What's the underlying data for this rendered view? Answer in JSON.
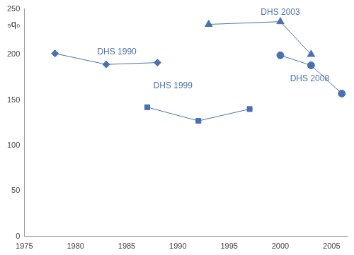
{
  "chart_data": {
    "type": "line",
    "ylabel": "₅q₀",
    "xlim": [
      1975,
      2006.5
    ],
    "xticks": [
      1975,
      1980,
      1985,
      1990,
      1995,
      2000,
      2005
    ],
    "ylim": [
      0,
      250
    ],
    "yticks": [
      0,
      50,
      100,
      150,
      200,
      250
    ],
    "grid": false,
    "series": [
      {
        "name": "DHS 1990",
        "color": "#4a72b0",
        "marker": "diamond",
        "line_style": "solid",
        "x": [
          1978,
          1983,
          1988
        ],
        "values": [
          201,
          189,
          191
        ]
      },
      {
        "name": "DHS 1999",
        "color": "#4a72b0",
        "marker": "square",
        "line_style": "solid",
        "x": [
          1987,
          1992,
          1997
        ],
        "values": [
          142,
          127,
          140
        ]
      },
      {
        "name": "DHS 2003",
        "color": "#4a72b0",
        "marker": "triangle",
        "line_style": "solid",
        "x": [
          1993,
          2000,
          2003
        ],
        "values": [
          233,
          236,
          200
        ]
      },
      {
        "name": "DHS 2008",
        "color": "#4a72b0",
        "marker": "circle",
        "line_style": "solid",
        "x": [
          2000,
          2003,
          2006
        ],
        "values": [
          199,
          188,
          157
        ]
      }
    ]
  }
}
